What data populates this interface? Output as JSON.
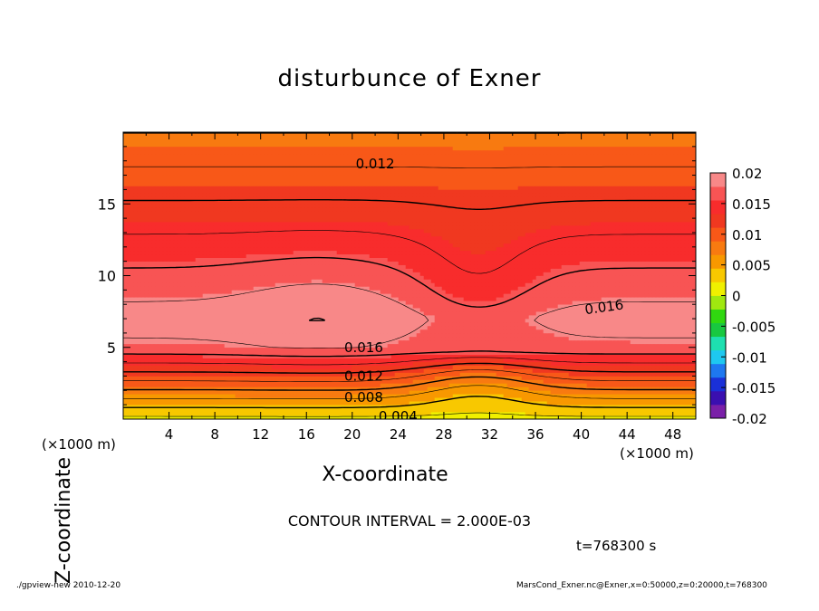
{
  "chart_data": {
    "type": "contour",
    "title": "disturbunce of Exner",
    "xlabel": "X-coordinate",
    "ylabel": "Z-coordinate",
    "x_unit": "(×1000 m)",
    "z_unit": "(×1000 m)",
    "xlim": [
      0,
      50
    ],
    "ylim": [
      0,
      20
    ],
    "x_ticks": [
      "4",
      "8",
      "12",
      "16",
      "20",
      "24",
      "28",
      "32",
      "36",
      "40",
      "44",
      "48"
    ],
    "y_ticks": [
      "5",
      "10",
      "15"
    ],
    "contour_labels": [
      "0.012",
      "0.016",
      "0.016",
      "0.012",
      "0.008",
      "0.004"
    ],
    "contour_interval_text": "CONTOUR INTERVAL = 2.000E-03",
    "time_text": "t=768300 s",
    "colorbar": {
      "ticks": [
        "0.02",
        "0.015",
        "0.01",
        "0.005",
        "0",
        "-0.005",
        "-0.01",
        "-0.015",
        "-0.02"
      ],
      "min": -0.02,
      "max": 0.02,
      "colors": [
        "#7a1fa8",
        "#3a0fb0",
        "#1a30d8",
        "#1e78f0",
        "#1ec8f0",
        "#1ee0b0",
        "#18c840",
        "#30d810",
        "#a0e810",
        "#f0f000",
        "#f8c800",
        "#f89800",
        "#f87a10",
        "#f85818",
        "#f03820",
        "#f82c2c",
        "#f85454",
        "#f88888"
      ]
    }
  },
  "footer": {
    "left": "./gpview-new   2010-12-20",
    "right": "MarsCond_Exner.nc@Exner,x=0:50000,z=0:20000,t=768300"
  }
}
